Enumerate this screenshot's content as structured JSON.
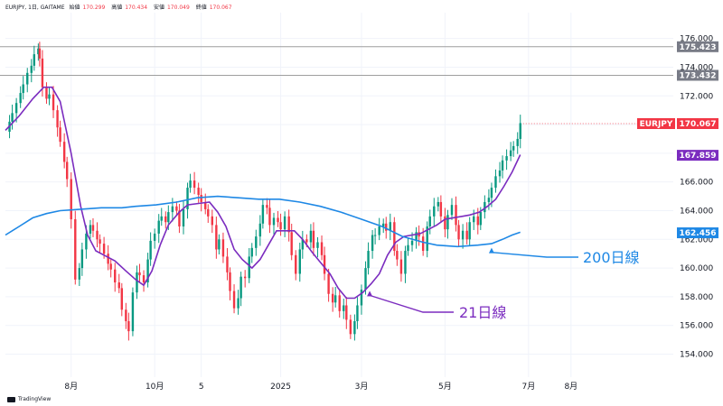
{
  "header": {
    "symbol": "EURJPY, 1日, GAITAME",
    "open_label": "始値",
    "open": "170.299",
    "high_label": "高値",
    "high": "170.434",
    "low_label": "安値",
    "low": "170.049",
    "close_label": "終値",
    "close": "170.067"
  },
  "brand": "TradingView",
  "chart_data": {
    "type": "candlestick",
    "symbol": "EURJPY",
    "timeframe": "1日",
    "y_ticks": [
      154,
      156,
      158,
      160,
      162,
      164,
      166,
      168,
      170,
      172,
      174,
      176
    ],
    "y_tick_labels": [
      "154.000",
      "156.000",
      "158.000",
      "160.000",
      "162.000",
      "164.000",
      "166.000",
      "168.000",
      "170.000",
      "172.000",
      "174.000",
      "176.000"
    ],
    "ylim": [
      152.4,
      177.8
    ],
    "x_labels": [
      {
        "label": "8月",
        "day": 48
      },
      {
        "label": "10月",
        "day": 109
      },
      {
        "label": "5",
        "day": 143
      },
      {
        "label": "2025",
        "day": 201
      },
      {
        "label": "3月",
        "day": 260
      },
      {
        "label": "5月",
        "day": 321
      },
      {
        "label": "7月",
        "day": 382
      },
      {
        "label": "8月",
        "day": 413
      }
    ],
    "x_range": [
      0,
      458
    ],
    "horizontal_lines": [
      {
        "value": 175.423,
        "label": "175.423"
      },
      {
        "value": 173.432,
        "label": "173.432"
      }
    ],
    "price_tags": [
      {
        "value": 170.067,
        "name": "EURJPY",
        "label": "170.067",
        "color": "#f23645"
      },
      {
        "value": 167.859,
        "label": "167.859",
        "color": "#7b2cbf"
      },
      {
        "value": 162.456,
        "label": "162.456",
        "color": "#1e88e5"
      }
    ],
    "series": [
      {
        "name": "21日線",
        "color": "#7b2cbf",
        "points": [
          [
            0,
            169.6
          ],
          [
            10,
            170.6
          ],
          [
            20,
            171.8
          ],
          [
            28,
            172.6
          ],
          [
            34,
            172.6
          ],
          [
            40,
            171.6
          ],
          [
            48,
            168.0
          ],
          [
            55,
            164.3
          ],
          [
            60,
            162.3
          ],
          [
            66,
            161.2
          ],
          [
            72,
            160.9
          ],
          [
            80,
            160.5
          ],
          [
            88,
            159.8
          ],
          [
            95,
            159.2
          ],
          [
            101,
            158.8
          ],
          [
            107,
            159.8
          ],
          [
            113,
            161.6
          ],
          [
            119,
            163.0
          ],
          [
            127,
            163.9
          ],
          [
            133,
            164.4
          ],
          [
            141,
            164.5
          ],
          [
            149,
            164.6
          ],
          [
            155,
            163.9
          ],
          [
            161,
            162.9
          ],
          [
            167,
            161.3
          ],
          [
            173,
            160.6
          ],
          [
            180,
            160.0
          ],
          [
            186,
            160.6
          ],
          [
            192,
            161.6
          ],
          [
            198,
            162.6
          ],
          [
            204,
            162.6
          ],
          [
            211,
            162.6
          ],
          [
            217,
            162.0
          ],
          [
            224,
            161.1
          ],
          [
            230,
            160.4
          ],
          [
            237,
            159.6
          ],
          [
            243,
            158.6
          ],
          [
            249,
            157.9
          ],
          [
            255,
            157.9
          ],
          [
            261,
            158.3
          ],
          [
            267,
            158.9
          ],
          [
            273,
            159.6
          ],
          [
            279,
            160.9
          ],
          [
            285,
            161.8
          ],
          [
            291,
            162.2
          ],
          [
            297,
            162.3
          ],
          [
            303,
            162.4
          ],
          [
            309,
            162.7
          ],
          [
            315,
            163.0
          ],
          [
            321,
            163.4
          ],
          [
            327,
            163.5
          ],
          [
            333,
            163.6
          ],
          [
            339,
            163.7
          ],
          [
            346,
            163.9
          ],
          [
            352,
            164.3
          ],
          [
            358,
            164.8
          ],
          [
            364,
            165.7
          ],
          [
            370,
            166.7
          ],
          [
            376,
            167.9
          ]
        ]
      },
      {
        "name": "200日線",
        "color": "#1e88e5",
        "points": [
          [
            0,
            162.3
          ],
          [
            10,
            162.9
          ],
          [
            20,
            163.5
          ],
          [
            30,
            163.8
          ],
          [
            40,
            164.0
          ],
          [
            55,
            164.1
          ],
          [
            70,
            164.2
          ],
          [
            85,
            164.2
          ],
          [
            95,
            164.3
          ],
          [
            110,
            164.4
          ],
          [
            125,
            164.6
          ],
          [
            140,
            164.9
          ],
          [
            155,
            165.0
          ],
          [
            170,
            164.9
          ],
          [
            185,
            164.8
          ],
          [
            200,
            164.8
          ],
          [
            215,
            164.6
          ],
          [
            230,
            164.3
          ],
          [
            245,
            163.9
          ],
          [
            260,
            163.4
          ],
          [
            275,
            162.9
          ],
          [
            290,
            162.2
          ],
          [
            305,
            161.8
          ],
          [
            315,
            161.6
          ],
          [
            330,
            161.5
          ],
          [
            345,
            161.6
          ],
          [
            355,
            161.7
          ],
          [
            363,
            162.0
          ],
          [
            370,
            162.3
          ],
          [
            376,
            162.5
          ]
        ]
      },
      {
        "name": "candles_close",
        "color": "#089981",
        "points": [
          [
            0,
            169.5
          ],
          [
            3,
            170.2
          ],
          [
            5,
            170.8
          ],
          [
            8,
            171.5
          ],
          [
            11,
            172.2
          ],
          [
            13,
            172.8
          ],
          [
            16,
            173.6
          ],
          [
            19,
            174.1
          ],
          [
            21,
            174.9
          ],
          [
            24,
            175.3
          ],
          [
            25,
            174.6
          ],
          [
            27,
            172.6
          ],
          [
            30,
            171.8
          ],
          [
            32,
            172.1
          ],
          [
            35,
            171.0
          ],
          [
            38,
            169.8
          ],
          [
            40,
            168.8
          ],
          [
            43,
            167.4
          ],
          [
            45,
            166.2
          ],
          [
            48,
            163.4
          ],
          [
            51,
            159.2
          ],
          [
            54,
            160.0
          ],
          [
            56,
            161.3
          ],
          [
            59,
            162.4
          ],
          [
            62,
            163.0
          ],
          [
            64,
            162.6
          ],
          [
            67,
            162.0
          ],
          [
            69,
            161.7
          ],
          [
            72,
            161.0
          ],
          [
            75,
            160.3
          ],
          [
            77,
            159.9
          ],
          [
            80,
            159.0
          ],
          [
            83,
            158.6
          ],
          [
            85,
            157.1
          ],
          [
            88,
            156.3
          ],
          [
            90,
            155.6
          ],
          [
            93,
            158.3
          ],
          [
            96,
            159.7
          ],
          [
            98,
            159.5
          ],
          [
            101,
            159.0
          ],
          [
            104,
            160.6
          ],
          [
            106,
            161.9
          ],
          [
            109,
            162.4
          ],
          [
            112,
            163.3
          ],
          [
            114,
            163.6
          ],
          [
            117,
            163.2
          ],
          [
            119,
            163.9
          ],
          [
            122,
            164.3
          ],
          [
            125,
            164.0
          ],
          [
            127,
            162.9
          ],
          [
            130,
            164.1
          ],
          [
            133,
            165.6
          ],
          [
            135,
            166.1
          ],
          [
            138,
            165.6
          ],
          [
            141,
            165.1
          ],
          [
            143,
            164.6
          ],
          [
            146,
            164.1
          ],
          [
            148,
            163.6
          ],
          [
            151,
            163.0
          ],
          [
            154,
            161.3
          ],
          [
            156,
            162.0
          ],
          [
            159,
            160.8
          ],
          [
            162,
            159.7
          ],
          [
            164,
            158.4
          ],
          [
            167,
            157.2
          ],
          [
            170,
            157.9
          ],
          [
            172,
            159.4
          ],
          [
            175,
            159.3
          ],
          [
            178,
            160.8
          ],
          [
            180,
            161.4
          ],
          [
            183,
            162.2
          ],
          [
            186,
            163.1
          ],
          [
            188,
            164.4
          ],
          [
            191,
            164.2
          ],
          [
            193,
            163.0
          ],
          [
            196,
            163.5
          ],
          [
            199,
            163.2
          ],
          [
            201,
            162.7
          ],
          [
            204,
            163.6
          ],
          [
            207,
            162.5
          ],
          [
            209,
            160.9
          ],
          [
            212,
            159.6
          ],
          [
            215,
            161.3
          ],
          [
            217,
            162.0
          ],
          [
            220,
            161.8
          ],
          [
            223,
            162.6
          ],
          [
            225,
            161.4
          ],
          [
            228,
            161.8
          ],
          [
            231,
            160.9
          ],
          [
            233,
            159.6
          ],
          [
            236,
            158.2
          ],
          [
            239,
            157.6
          ],
          [
            241,
            158.1
          ],
          [
            244,
            157.0
          ],
          [
            247,
            157.4
          ],
          [
            249,
            156.4
          ],
          [
            252,
            155.4
          ],
          [
            255,
            156.3
          ],
          [
            257,
            157.4
          ],
          [
            260,
            158.5
          ],
          [
            263,
            160.0
          ],
          [
            265,
            161.2
          ],
          [
            268,
            162.3
          ],
          [
            270,
            162.3
          ],
          [
            273,
            162.9
          ],
          [
            276,
            163.1
          ],
          [
            278,
            162.6
          ],
          [
            281,
            163.2
          ],
          [
            284,
            161.2
          ],
          [
            286,
            160.6
          ],
          [
            289,
            159.6
          ],
          [
            292,
            161.2
          ],
          [
            294,
            161.6
          ],
          [
            297,
            161.9
          ],
          [
            300,
            162.5
          ],
          [
            302,
            162.2
          ],
          [
            305,
            161.2
          ],
          [
            308,
            162.9
          ],
          [
            310,
            163.6
          ],
          [
            313,
            164.3
          ],
          [
            316,
            164.6
          ],
          [
            318,
            163.6
          ],
          [
            321,
            162.7
          ],
          [
            323,
            163.7
          ],
          [
            326,
            164.4
          ],
          [
            329,
            163.0
          ],
          [
            331,
            162.0
          ],
          [
            334,
            162.6
          ],
          [
            337,
            162.0
          ],
          [
            339,
            163.2
          ],
          [
            342,
            163.6
          ],
          [
            345,
            163.0
          ],
          [
            347,
            163.9
          ],
          [
            350,
            164.6
          ],
          [
            353,
            164.9
          ],
          [
            355,
            165.6
          ],
          [
            358,
            166.4
          ],
          [
            361,
            166.8
          ],
          [
            363,
            167.5
          ],
          [
            366,
            167.8
          ],
          [
            369,
            168.2
          ],
          [
            371,
            168.5
          ],
          [
            374,
            169.0
          ],
          [
            376,
            170.1
          ]
        ]
      }
    ],
    "annotations": [
      {
        "text": "200日線",
        "color": "#1e88e5",
        "arrow_to": [
          355,
          161.6
        ]
      },
      {
        "text": "21日線",
        "color": "#7b2cbf",
        "arrow_to": [
          266,
          158.6
        ]
      }
    ],
    "colors": {
      "up": "#089981",
      "down": "#f23645",
      "grid": "#f0f3fa",
      "axis_text": "#131722",
      "level_line": "#9e9e9e"
    }
  }
}
